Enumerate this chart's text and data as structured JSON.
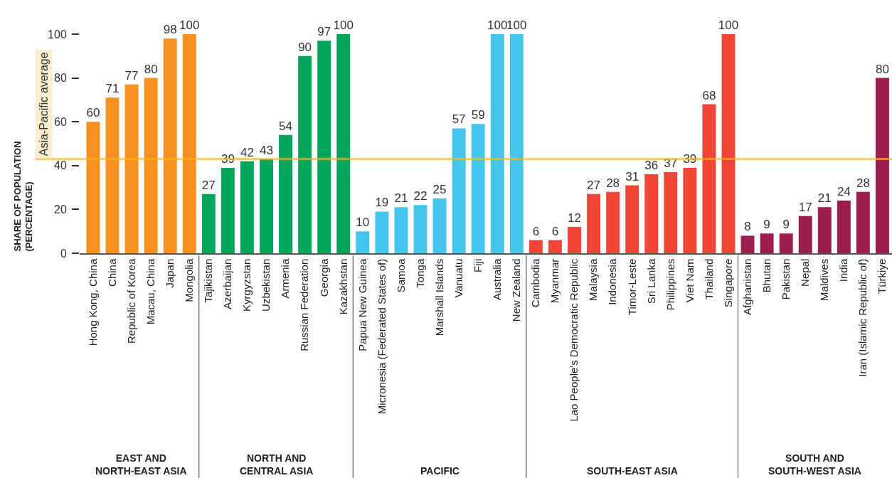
{
  "chart_data": {
    "type": "bar",
    "categories": [
      "Hong Kong, China",
      "China",
      "Republic of Korea",
      "Macau, China",
      "Japan",
      "Mongolia",
      "Tajikistan",
      "Azerbaijan",
      "Kyrgyzstan",
      "Uzbekistan",
      "Armenia",
      "Russian Federation",
      "Georgia",
      "Kazakhstan",
      "Papua New Guinea",
      "Micronesia (Federated States of)",
      "Samoa",
      "Tonga",
      "Marshall Islands",
      "Vanuatu",
      "Fiji",
      "Australia",
      "New Zealand",
      "Cambodia",
      "Myanmar",
      "Lao People's Democratic Republic",
      "Malaysia",
      "Indonesia",
      "Timor-Leste",
      "Sri Lanka",
      "Philippines",
      "Viet Nam",
      "Thailand",
      "Singapore",
      "Afghanistan",
      "Bhutan",
      "Pakistan",
      "Nepal",
      "Maldives",
      "India",
      "Iran (Islamic Republic of)",
      "Türkiye"
    ],
    "values": [
      60,
      71,
      77,
      80,
      98,
      100,
      27,
      39,
      42,
      43,
      54,
      90,
      97,
      100,
      10,
      19,
      21,
      22,
      25,
      57,
      59,
      100,
      100,
      6,
      6,
      12,
      27,
      28,
      31,
      36,
      37,
      39,
      68,
      100,
      8,
      9,
      9,
      17,
      21,
      24,
      28,
      80
    ],
    "colors": [
      "#f7901e",
      "#f7901e",
      "#f7901e",
      "#f7901e",
      "#f7901e",
      "#f7901e",
      "#00a65a",
      "#00a65a",
      "#00a65a",
      "#00a65a",
      "#00a65a",
      "#00a65a",
      "#00a65a",
      "#00a65a",
      "#45c5eb",
      "#45c5eb",
      "#45c5eb",
      "#45c5eb",
      "#45c5eb",
      "#45c5eb",
      "#45c5eb",
      "#45c5eb",
      "#45c5eb",
      "#ef4638",
      "#ef4638",
      "#ef4638",
      "#ef4638",
      "#ef4638",
      "#ef4638",
      "#ef4638",
      "#ef4638",
      "#ef4638",
      "#ef4638",
      "#ef4638",
      "#9d1d4f",
      "#9d1d4f",
      "#9d1d4f",
      "#9d1d4f",
      "#9d1d4f",
      "#9d1d4f",
      "#9d1d4f",
      "#9d1d4f"
    ],
    "ylabel": "SHARE OF POPULATION\n(PERCENTAGE)",
    "ylim": [
      0,
      100
    ],
    "yticks": [
      0,
      20,
      40,
      60,
      80,
      100
    ],
    "data_labels": true,
    "ref_lines": [
      {
        "axis": "y",
        "value": 43,
        "label": "Asia-Pacific average",
        "color": "#fbb616"
      }
    ],
    "annotations": [
      "EAST AND\nNORTH-EAST ASIA",
      "NORTH AND\nCENTRAL ASIA",
      "PACIFIC",
      "SOUTH-EAST ASIA",
      "SOUTH AND\nSOUTH-WEST ASIA"
    ]
  }
}
